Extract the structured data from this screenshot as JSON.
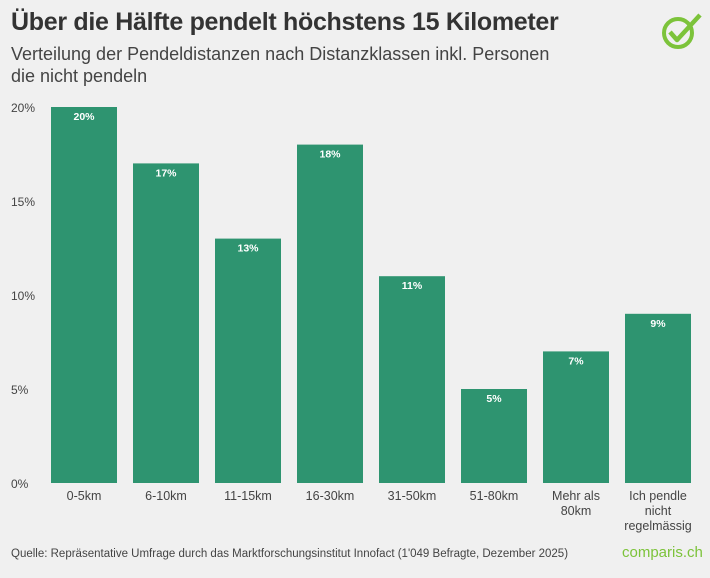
{
  "title": "Über die Hälfte pendelt höchstens 15 Kilometer",
  "subtitle": "Verteilung der Pendeldistanzen nach Distanzklassen inkl. Personen die nicht pendeln",
  "source": "Quelle: Repräsentative Umfrage durch das Marktforschungsinstitut Innofact (1'049 Befragte, Dezember 2025)",
  "brand": "comparis.ch",
  "logo_icon": "check-circle-icon",
  "colors": {
    "bar": "#2e9470",
    "logo": "#7cc33a"
  },
  "chart_data": {
    "type": "bar",
    "categories": [
      "0-5km",
      "6-10km",
      "11-15km",
      "16-30km",
      "31-50km",
      "51-80km",
      "Mehr als 80km",
      "Ich pendle nicht regelmässig"
    ],
    "category_lines": [
      [
        "0-5km"
      ],
      [
        "6-10km"
      ],
      [
        "11-15km"
      ],
      [
        "16-30km"
      ],
      [
        "31-50km"
      ],
      [
        "51-80km"
      ],
      [
        "Mehr als",
        "80km"
      ],
      [
        "Ich pendle",
        "nicht",
        "regelmässig"
      ]
    ],
    "values": [
      20,
      17,
      13,
      18,
      11,
      5,
      7,
      9
    ],
    "data_labels": [
      "20%",
      "17%",
      "13%",
      "18%",
      "11%",
      "5%",
      "7%",
      "9%"
    ],
    "yticks": [
      "0%",
      "5%",
      "10%",
      "15%",
      "20%"
    ],
    "ylim": [
      0,
      20
    ],
    "grid": false
  }
}
